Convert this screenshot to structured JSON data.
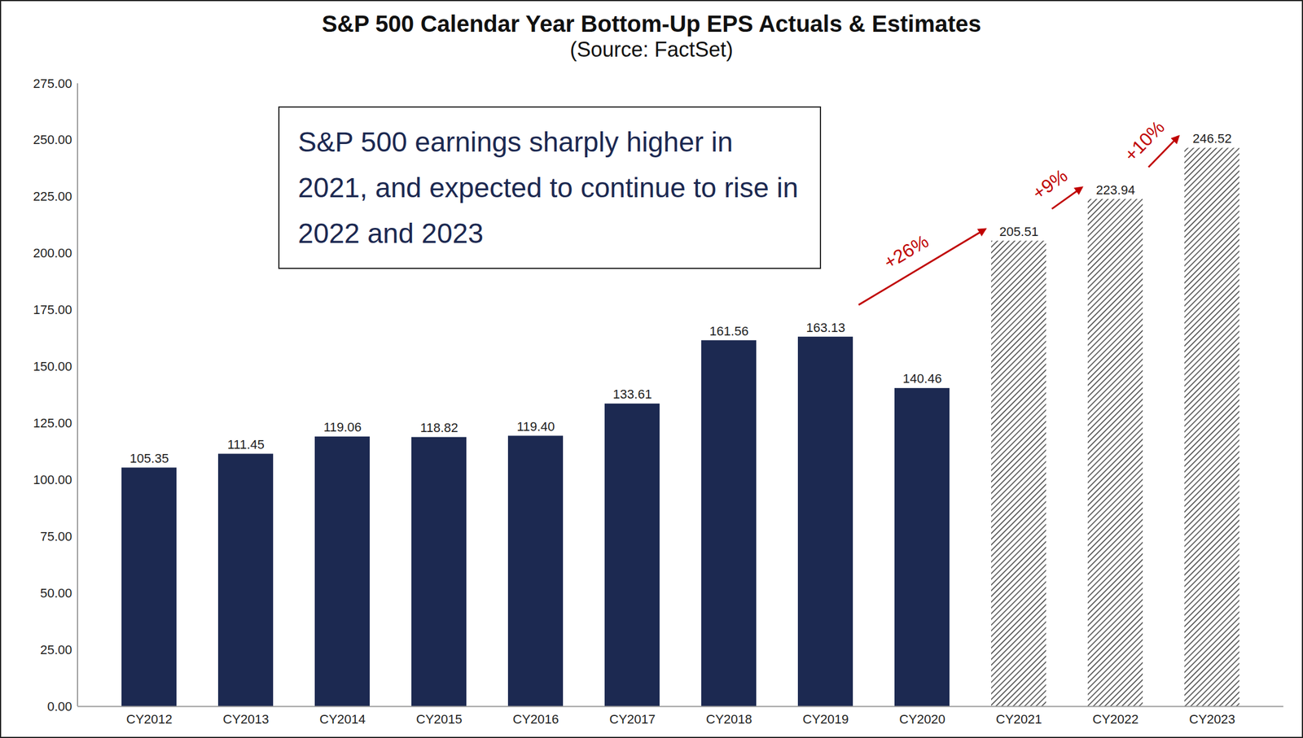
{
  "chart_data": {
    "type": "bar",
    "title": "S&P 500 Calendar Year Bottom-Up EPS Actuals & Estimates",
    "subtitle": "(Source: FactSet)",
    "categories": [
      "CY2012",
      "CY2013",
      "CY2014",
      "CY2015",
      "CY2016",
      "CY2017",
      "CY2018",
      "CY2019",
      "CY2020",
      "CY2021",
      "CY2022",
      "CY2023"
    ],
    "series": [
      {
        "name": "Actuals",
        "color": "#1c2951",
        "line_style": "solid",
        "values": [
          105.35,
          111.45,
          119.06,
          118.82,
          119.4,
          133.61,
          161.56,
          163.13,
          140.46,
          null,
          null,
          null
        ],
        "value_labels": [
          "105.35",
          "111.45",
          "119.06",
          "118.82",
          "119.40",
          "133.61",
          "161.56",
          "163.13",
          "140.46",
          null,
          null,
          null
        ]
      },
      {
        "name": "Estimates",
        "color": "#333333",
        "line_style": "hatched",
        "values": [
          null,
          null,
          null,
          null,
          null,
          null,
          null,
          null,
          null,
          205.51,
          223.94,
          246.52
        ],
        "value_labels": [
          null,
          null,
          null,
          null,
          null,
          null,
          null,
          null,
          null,
          "205.51",
          "223.94",
          "246.52"
        ]
      }
    ],
    "ylim": [
      0,
      275
    ],
    "yticks": [
      {
        "value": 0,
        "label": "0.00"
      },
      {
        "value": 25,
        "label": "25.00"
      },
      {
        "value": 50,
        "label": "50.00"
      },
      {
        "value": 75,
        "label": "75.00"
      },
      {
        "value": 100,
        "label": "100.00"
      },
      {
        "value": 125,
        "label": "125.00"
      },
      {
        "value": 150,
        "label": "150.00"
      },
      {
        "value": 175,
        "label": "175.00"
      },
      {
        "value": 200,
        "label": "200.00"
      },
      {
        "value": 225,
        "label": "225.00"
      },
      {
        "value": 250,
        "label": "250.00"
      },
      {
        "value": 275,
        "label": "275.00"
      }
    ],
    "grid": false,
    "data_labels": true,
    "annotations": [
      {
        "text": "S&P 500 earnings sharply higher in 2021, and expected to continue to rise in 2022 and 2023"
      },
      {
        "text": "+26%",
        "from": "CY2019",
        "to": "CY2021",
        "color": "#c00000"
      },
      {
        "text": "+9%",
        "from": "CY2021",
        "to": "CY2022",
        "color": "#c00000"
      },
      {
        "text": "+10%",
        "from": "CY2022",
        "to": "CY2023",
        "color": "#c00000"
      }
    ]
  }
}
